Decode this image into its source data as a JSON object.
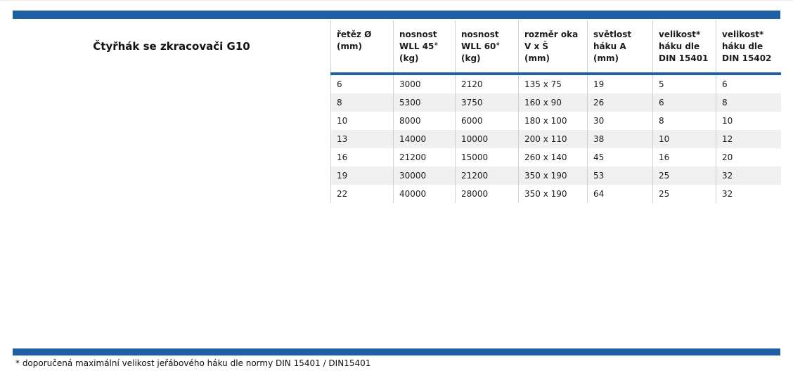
{
  "title": "Čtyřhák se zkracovači G10",
  "footnote": "* doporučená maximální velikost jeřábového háku dle normy DIN 15401 / DIN15401",
  "colors": {
    "accent": "#1f5fa4",
    "row_alt": "#f0f0f0",
    "grid": "#c7d2dd",
    "text": "#1c1c1c"
  },
  "table": {
    "headers": [
      {
        "id": "chain-diameter",
        "lines": [
          "řetěz Ø",
          "(mm)"
        ]
      },
      {
        "id": "wll-45",
        "lines": [
          "nosnost",
          "WLL 45°",
          "(kg)"
        ]
      },
      {
        "id": "wll-60",
        "lines": [
          "nosnost",
          "WLL 60°",
          "(kg)"
        ]
      },
      {
        "id": "eye-dimensions",
        "lines": [
          "rozměr oka",
          "V x Š",
          "(mm)"
        ]
      },
      {
        "id": "hook-clearance",
        "lines": [
          "světlost",
          "háku A",
          "(mm)"
        ]
      },
      {
        "id": "hook-size-din-15401",
        "lines": [
          "velikost*",
          "háku dle",
          "DIN 15401"
        ]
      },
      {
        "id": "hook-size-din-15402",
        "lines": [
          "velikost*",
          "háku dle",
          "DIN 15402"
        ]
      }
    ],
    "rows": [
      [
        "6",
        "3000",
        "2120",
        "135 x 75",
        "19",
        "5",
        "6"
      ],
      [
        "8",
        "5300",
        "3750",
        "160 x 90",
        "26",
        "6",
        "8"
      ],
      [
        "10",
        "8000",
        "6000",
        "180 x 100",
        "30",
        "8",
        "10"
      ],
      [
        "13",
        "14000",
        "10000",
        "200 x 110",
        "38",
        "10",
        "12"
      ],
      [
        "16",
        "21200",
        "15000",
        "260 x 140",
        "45",
        "16",
        "20"
      ],
      [
        "19",
        "30000",
        "21200",
        "350 x 190",
        "53",
        "25",
        "32"
      ],
      [
        "22",
        "40000",
        "28000",
        "350 x 190",
        "64",
        "25",
        "32"
      ]
    ]
  }
}
